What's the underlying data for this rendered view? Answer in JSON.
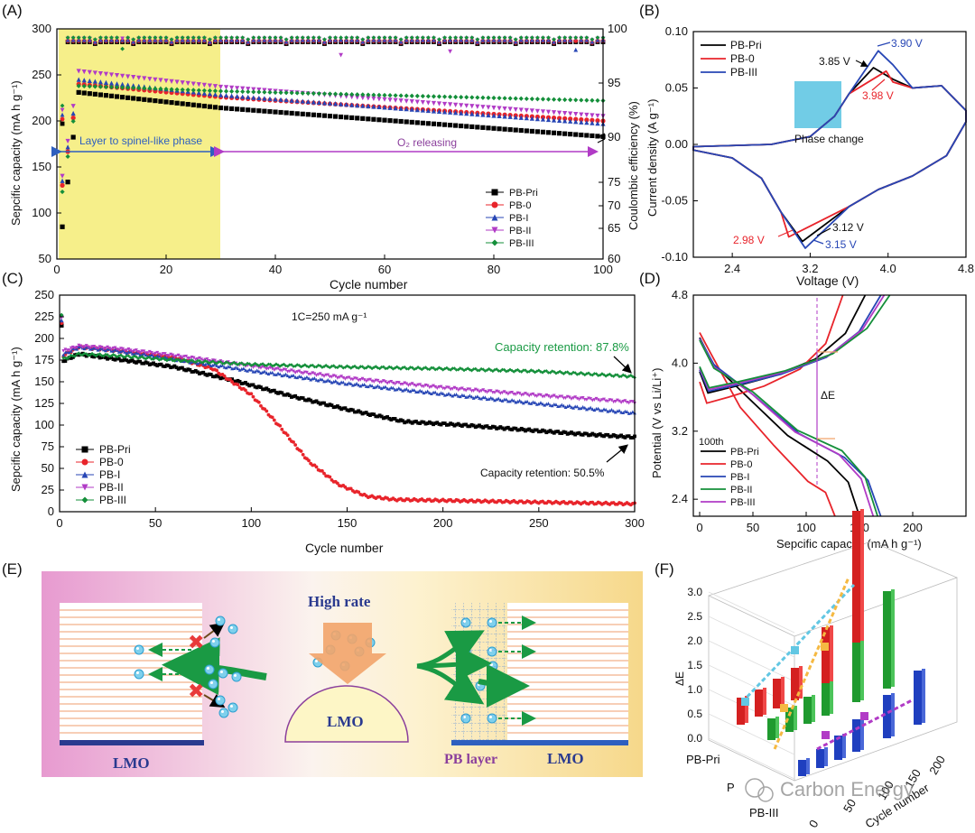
{
  "colors": {
    "pri": "#000000",
    "pb0": "#e8242b",
    "pb1": "#2746b5",
    "pb2": "#b13bc6",
    "pb3": "#148f3a",
    "green_line": "#1a9a44",
    "yellow": "#f6ef8a",
    "cyan": "#62c7e3",
    "orange": "#f2a46a",
    "purple": "#8b3f9c",
    "navy": "#2a3a8f",
    "blue_layer": "#2e5fbf"
  },
  "panel_labels": {
    "a": "(A)",
    "b": "(B)",
    "c": "(C)",
    "d": "(D)",
    "e": "(E)",
    "f": "(F)"
  },
  "watermark": "Carbon Energy",
  "chart_data": [
    {
      "id": "A",
      "type": "scatter",
      "xlabel": "Cycle number",
      "ylabel": "Sepcific capacity (mA h g⁻¹)",
      "y2label": "Coulombic efficiency (%)",
      "xlim": [
        0,
        100
      ],
      "ylim": [
        50,
        300
      ],
      "y2ticks": [
        60,
        65,
        70,
        75,
        90,
        95,
        100
      ],
      "xticks": [
        0,
        20,
        40,
        60,
        80,
        100
      ],
      "yticks": [
        50,
        100,
        150,
        200,
        250,
        300
      ],
      "annotations": {
        "left": "Layer to spinel-like phase",
        "right": "O₂ releasing"
      },
      "shaded_region": [
        0,
        30
      ],
      "legend": [
        "PB-Pri",
        "PB-0",
        "PB-I",
        "PB-II",
        "PB-III"
      ],
      "series": [
        {
          "name": "PB-Pri",
          "key": "pri",
          "start": 85,
          "peak": [
            4,
            231
          ],
          "end": 183
        },
        {
          "name": "PB-0",
          "key": "pb0",
          "start": 130,
          "peak": [
            4,
            240
          ],
          "end": 200
        },
        {
          "name": "PB-I",
          "key": "pb1",
          "start": 135,
          "peak": [
            4,
            245
          ],
          "end": 197
        },
        {
          "name": "PB-II",
          "key": "pb2",
          "start": 140,
          "peak": [
            4,
            254
          ],
          "end": 205
        },
        {
          "name": "PB-III",
          "key": "pb3",
          "start": 123,
          "peak": [
            4,
            238
          ],
          "end": 222
        }
      ]
    },
    {
      "id": "B",
      "type": "line",
      "xlabel": "Voltage (V)",
      "ylabel": "Current density (A g⁻¹)",
      "xlim": [
        2.0,
        4.8
      ],
      "ylim": [
        -0.1,
        0.1
      ],
      "xticks": [
        "2.4",
        "3.2",
        "4.0",
        "4.8"
      ],
      "yticks": [
        "-0.10",
        "-0.05",
        "0.00",
        "0.05",
        "0.10"
      ],
      "legend": [
        "PB-Pri",
        "PB-0",
        "PB-III"
      ],
      "annotations": {
        "pri_ox": "3.85 V",
        "iii_ox": "3.90 V",
        "pb0_ox": "3.98 V",
        "pb0_red": "2.98 V",
        "pri_red": "3.12 V",
        "iii_red": "3.15 V",
        "box": "Phase change"
      }
    },
    {
      "id": "C",
      "type": "scatter",
      "xlabel": "Cycle number",
      "ylabel": "Sepcific capacity (mA h g⁻¹)",
      "xlim": [
        0,
        300
      ],
      "ylim": [
        0,
        250
      ],
      "xticks": [
        0,
        50,
        100,
        150,
        200,
        250,
        300
      ],
      "yticks": [
        0,
        25,
        50,
        75,
        100,
        125,
        150,
        175,
        200,
        225,
        250
      ],
      "rate": "1C=250 mA g⁻¹",
      "annotations": {
        "r1": "Capacity retention: 87.8%",
        "r2": "Capacity retention: 50.5%"
      },
      "legend": [
        "PB-Pri",
        "PB-0",
        "PB-I",
        "PB-II",
        "PB-III"
      ],
      "series": [
        {
          "name": "PB-Pri",
          "key": "pri",
          "x": [
            0,
            10,
            30,
            60,
            90,
            120,
            150,
            180,
            210,
            240,
            270,
            300
          ],
          "y": [
            172,
            182,
            176,
            167,
            152,
            134,
            118,
            104,
            100,
            95,
            90,
            86
          ]
        },
        {
          "name": "PB-0",
          "key": "pb0",
          "x": [
            0,
            10,
            30,
            60,
            80,
            100,
            115,
            130,
            145,
            160,
            175,
            200,
            250,
            300
          ],
          "y": [
            178,
            190,
            186,
            178,
            165,
            135,
            98,
            58,
            32,
            18,
            14,
            13,
            11,
            9
          ]
        },
        {
          "name": "PB-I",
          "key": "pb1",
          "x": [
            0,
            10,
            30,
            60,
            100,
            150,
            200,
            250,
            300
          ],
          "y": [
            180,
            190,
            186,
            176,
            163,
            148,
            136,
            125,
            114
          ]
        },
        {
          "name": "PB-II",
          "key": "pb2",
          "x": [
            0,
            10,
            30,
            60,
            100,
            150,
            200,
            250,
            300
          ],
          "y": [
            184,
            191,
            188,
            180,
            168,
            154,
            143,
            134,
            126
          ]
        },
        {
          "name": "PB-III",
          "key": "pb3",
          "x": [
            0,
            10,
            30,
            60,
            100,
            150,
            200,
            250,
            300
          ],
          "y": [
            175,
            182,
            180,
            175,
            170,
            167,
            165,
            162,
            156
          ]
        }
      ]
    },
    {
      "id": "D",
      "type": "line",
      "xlabel": "Sepcific capacity (mA h g⁻¹)",
      "ylabel": "Potential (V vs Li/Li⁺)",
      "xlim": [
        0,
        250
      ],
      "ylim": [
        2.2,
        4.8
      ],
      "xticks": [
        0,
        50,
        100,
        150,
        200
      ],
      "yticks": [
        "2.4",
        "3.2",
        "4.0",
        "4.8"
      ],
      "cycle_label": "100th",
      "delta_label": "ΔE",
      "legend": [
        "PB-Pri",
        "PB-0",
        "PB-I",
        "PB-II",
        "PB-III"
      ],
      "series": [
        {
          "name": "PB-Pri",
          "key": "pri",
          "charge_end": 148,
          "discharge_end": 150
        },
        {
          "name": "PB-0",
          "key": "pb0",
          "charge_end": 112,
          "discharge_end": 127
        },
        {
          "name": "PB-I",
          "key": "pb1",
          "charge_end": 162,
          "discharge_end": 170
        },
        {
          "name": "PB-II",
          "key": "pb2",
          "charge_end": 165,
          "discharge_end": 163
        },
        {
          "name": "PB-III",
          "key": "pb3",
          "charge_end": 170,
          "discharge_end": 167
        }
      ]
    },
    {
      "id": "F",
      "type": "bar3d",
      "zlabel": "ΔE",
      "ylabel": "Cycle number",
      "zticks": [
        "0.0",
        "0.5",
        "1.0",
        "1.5",
        "2.0",
        "2.5",
        "3.0"
      ],
      "cycle_ticks": [
        "0",
        "50",
        "100",
        "150",
        "200"
      ],
      "samples": [
        "PB-Pri",
        "P",
        "PB-III"
      ],
      "series": [
        {
          "name": "PB-Pri",
          "key": "pb0",
          "values": [
            0.5,
            0.5,
            0.55,
            0.6,
            1.1,
            3.0
          ]
        },
        {
          "name": "PB-II",
          "key": "pb3",
          "values": [
            0.4,
            0.45,
            0.5,
            0.6,
            1.1,
            1.8
          ]
        },
        {
          "name": "PB-III",
          "key": "pb1",
          "values": [
            0.3,
            0.35,
            0.45,
            0.6,
            0.8,
            1.0
          ]
        }
      ]
    }
  ],
  "schematic": {
    "lmo_left": "LMO",
    "lmo_center": "LMO",
    "lmo_right": "LMO",
    "high_rate": "High rate",
    "pb_layer": "PB layer"
  }
}
